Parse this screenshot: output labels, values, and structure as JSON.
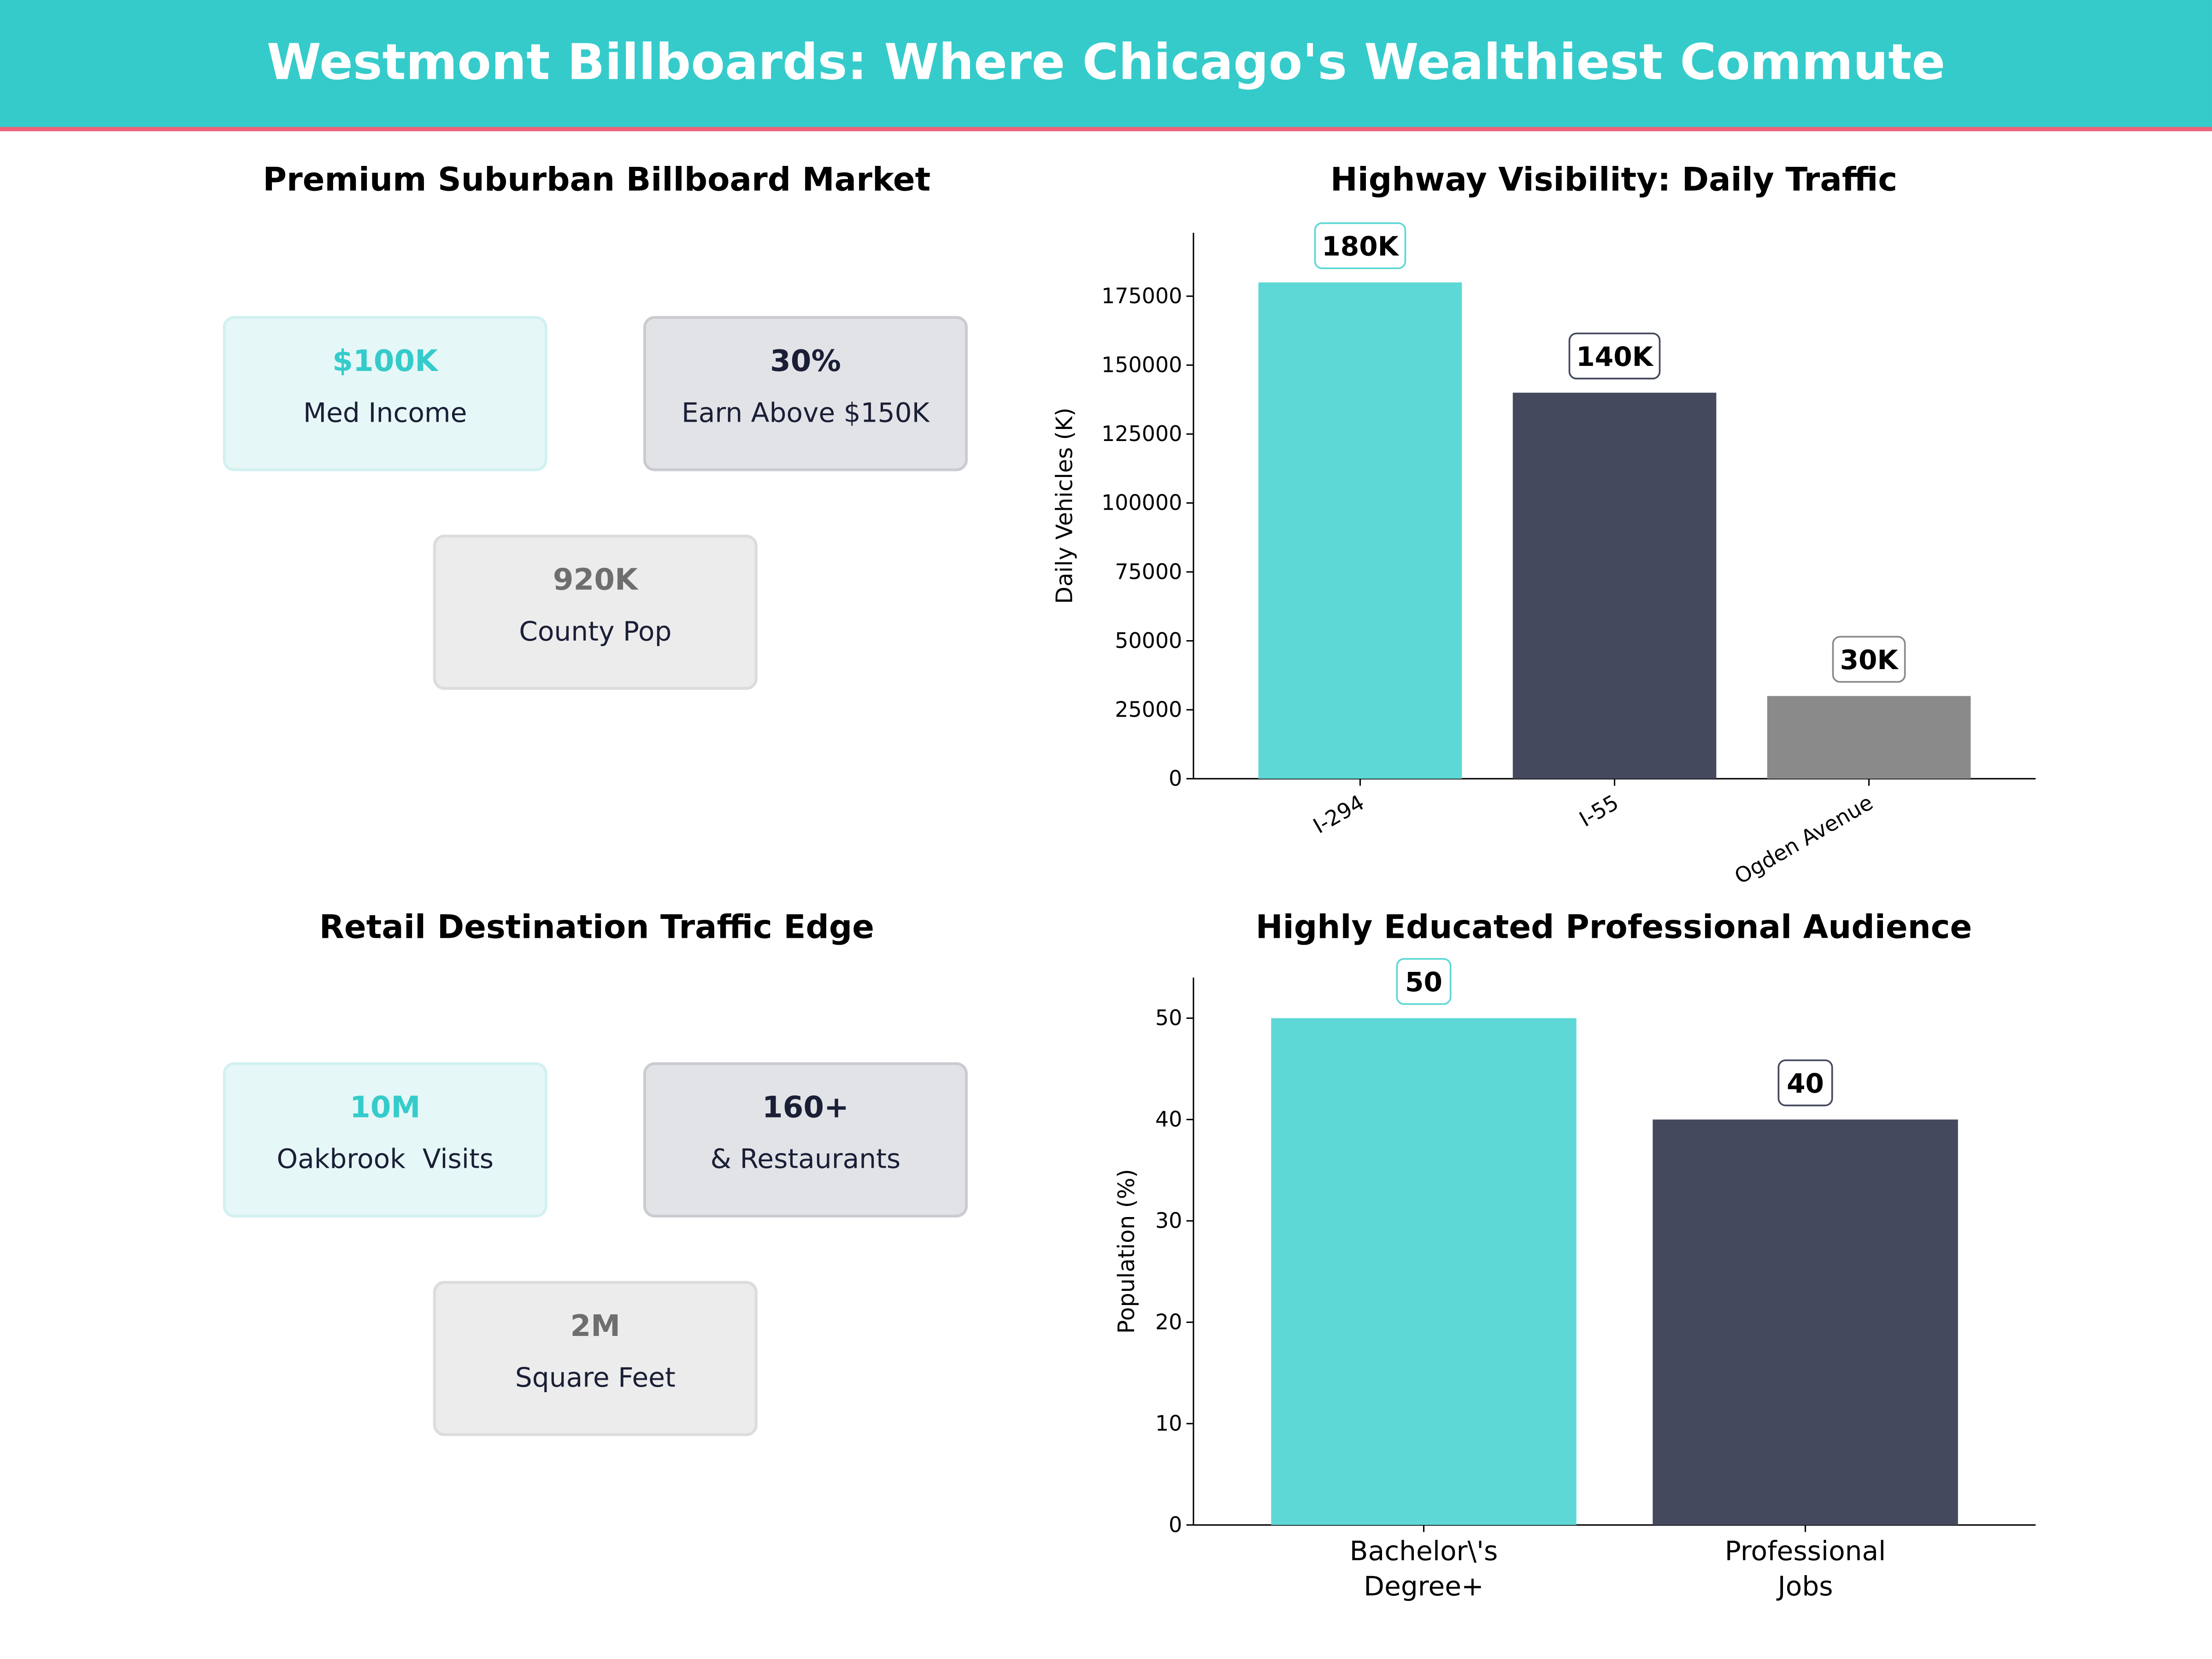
{
  "title": "Westmont Billboards: Where Chicago's Wealthiest Commute",
  "colors": {
    "header": "#35cbcb",
    "accent_line": "#f06078",
    "teal": "#5dd8d6",
    "dark": "#44495e",
    "gray": "#8a8a8a"
  },
  "panel1": {
    "title": "Premium Suburban Billboard Market",
    "cards": [
      {
        "value": "$100K",
        "label": "Med Income"
      },
      {
        "value": "30%",
        "label": "Earn Above $150K"
      },
      {
        "value": "920K",
        "label": "County Pop"
      }
    ]
  },
  "panel3": {
    "title": "Retail Destination Traffic Edge",
    "cards": [
      {
        "value": "10M",
        "label": "Oakbrook  Visits"
      },
      {
        "value": "160+",
        "label": "& Restaurants"
      },
      {
        "value": "2M",
        "label": "Square Feet"
      }
    ]
  },
  "chart_data": [
    {
      "type": "bar",
      "title": "Highway Visibility: Daily Traffic",
      "ylabel": "Daily Vehicles (K)",
      "xlabel": "",
      "categories": [
        "I-294",
        "I-55",
        "Ogden Avenue"
      ],
      "values": [
        180000,
        140000,
        30000
      ],
      "data_labels": [
        "180K",
        "140K",
        "30K"
      ],
      "colors": [
        "#5dd8d6",
        "#44495e",
        "#8a8a8a"
      ],
      "ylim": [
        0,
        198000
      ],
      "yticks": [
        0,
        25000,
        50000,
        75000,
        100000,
        125000,
        150000,
        175000
      ],
      "grid": false
    },
    {
      "type": "bar",
      "title": "Highly Educated Professional Audience",
      "ylabel": "Population (%)",
      "xlabel": "",
      "categories": [
        "Bachelor\\'s\nDegree+",
        "Professional\nJobs"
      ],
      "values": [
        50,
        40
      ],
      "data_labels": [
        "50",
        "40"
      ],
      "colors": [
        "#5dd8d6",
        "#44495e"
      ],
      "ylim": [
        0,
        54
      ],
      "yticks": [
        0,
        10,
        20,
        30,
        40,
        50
      ],
      "grid": false
    }
  ]
}
